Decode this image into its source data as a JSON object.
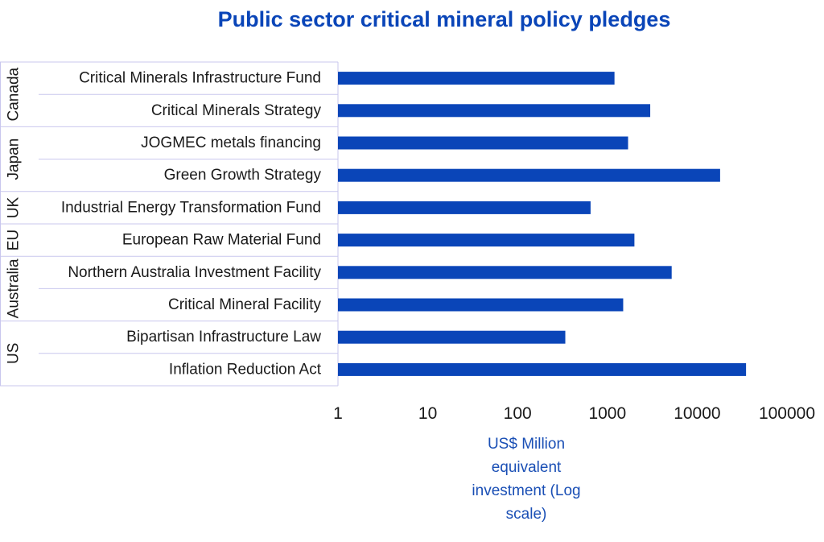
{
  "chart_data": {
    "type": "bar",
    "orientation": "horizontal",
    "title": "Public sector critical mineral policy pledges",
    "xlabel_lines": [
      "US$ Million",
      "equivalent",
      "investment (Log",
      "scale)"
    ],
    "x_scale": "log",
    "xlim": [
      1,
      100000
    ],
    "x_ticks": [
      "1",
      "10",
      "100",
      "1000",
      "10000",
      "100000"
    ],
    "grid": false,
    "legend": "none",
    "bar_color": "#0a45b8",
    "title_color": "#0a45b8",
    "groups": [
      {
        "name": "Canada",
        "categories": [
          "Critical Minerals Infrastructure Fund",
          "Critical Minerals Strategy"
        ]
      },
      {
        "name": "Japan",
        "categories": [
          "JOGMEC metals financing",
          "Green Growth Strategy"
        ]
      },
      {
        "name": "UK",
        "categories": [
          "Industrial Energy Transformation Fund"
        ]
      },
      {
        "name": "EU",
        "categories": [
          "European Raw Material Fund"
        ]
      },
      {
        "name": "Australia",
        "categories": [
          "Northern Australia Investment Facility",
          "Critical Mineral Facility"
        ]
      },
      {
        "name": "US",
        "categories": [
          "Bipartisan Infrastructure Law",
          "Inflation Reduction Act"
        ]
      }
    ],
    "categories": [
      "Critical Minerals Infrastructure Fund",
      "Critical Minerals Strategy",
      "JOGMEC metals financing",
      "Green Growth Strategy",
      "Industrial Energy Transformation Fund",
      "European Raw Material Fund",
      "Northern Australia Investment Facility",
      "Critical Mineral Facility",
      "Bipartisan Infrastructure Law",
      "Inflation Reduction Act"
    ],
    "values": [
      1200,
      3000,
      1700,
      18000,
      650,
      2000,
      5200,
      1500,
      340,
      35000
    ]
  }
}
